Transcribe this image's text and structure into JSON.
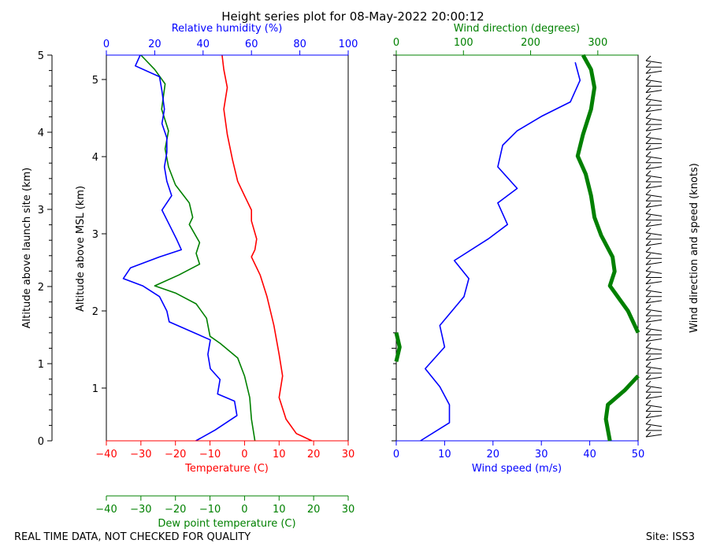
{
  "chart_data": {
    "type": "line",
    "title": "Height series plot for 08-May-2022 20:00:12",
    "footer_left": "REAL TIME DATA, NOT CHECKED FOR QUALITY",
    "footer_right": "Site: ISS3",
    "left_panel": {
      "outer_ylabel": "Altitude above launch site (km)",
      "outer_yticks": [
        "0",
        "1",
        "2",
        "3",
        "4",
        "5"
      ],
      "inner_ylabel": "Altitude above MSL (km)",
      "inner_yticks": [
        "1",
        "2",
        "3",
        "4",
        "5"
      ],
      "temp_axis": {
        "label": "Temperature (C)",
        "range": [
          -40,
          30
        ],
        "ticks": [
          "−40",
          "−30",
          "−20",
          "−10",
          "0",
          "10",
          "20",
          "30"
        ]
      },
      "rh_axis": {
        "label": "Relative humidity (%)",
        "range": [
          0,
          100
        ],
        "ticks": [
          "0",
          "20",
          "40",
          "60",
          "80",
          "100"
        ]
      },
      "dew_axis": {
        "label": "Dew point temperature (C)",
        "range": [
          -40,
          30
        ],
        "ticks": [
          "−40",
          "−30",
          "−20",
          "−10",
          "0",
          "10",
          "20",
          "30"
        ]
      },
      "altitude_range_km": [
        0,
        5.35
      ],
      "series": [
        {
          "name": "Temperature",
          "color": "#ff0000",
          "axis": "temp",
          "points": [
            [
              19.5,
              0
            ],
            [
              15,
              0.1
            ],
            [
              12,
              0.3
            ],
            [
              10,
              0.6
            ],
            [
              11,
              0.9
            ],
            [
              10,
              1.2
            ],
            [
              8.5,
              1.6
            ],
            [
              6.5,
              2.0
            ],
            [
              4.5,
              2.3
            ],
            [
              2,
              2.55
            ],
            [
              3,
              2.65
            ],
            [
              3.5,
              2.8
            ],
            [
              2,
              3.05
            ],
            [
              2,
              3.2
            ],
            [
              0,
              3.4
            ],
            [
              -2,
              3.6
            ],
            [
              -3.5,
              3.9
            ],
            [
              -5,
              4.25
            ],
            [
              -6,
              4.6
            ],
            [
              -5,
              4.9
            ],
            [
              -6,
              5.15
            ],
            [
              -6.5,
              5.35
            ]
          ]
        },
        {
          "name": "Dew point",
          "color": "#008000",
          "axis": "dew",
          "points": [
            [
              3,
              0
            ],
            [
              2,
              0.3
            ],
            [
              1.5,
              0.6
            ],
            [
              0,
              0.9
            ],
            [
              -2,
              1.15
            ],
            [
              -7,
              1.35
            ],
            [
              -10,
              1.45
            ],
            [
              -11,
              1.7
            ],
            [
              -14,
              1.9
            ],
            [
              -20,
              2.05
            ],
            [
              -26,
              2.15
            ],
            [
              -19,
              2.3
            ],
            [
              -13,
              2.45
            ],
            [
              -14,
              2.6
            ],
            [
              -13,
              2.75
            ],
            [
              -16,
              3.0
            ],
            [
              -15,
              3.1
            ],
            [
              -16,
              3.3
            ],
            [
              -20,
              3.55
            ],
            [
              -22,
              3.8
            ],
            [
              -23,
              4.05
            ],
            [
              -22,
              4.3
            ],
            [
              -24,
              4.6
            ],
            [
              -23,
              4.95
            ],
            [
              -26,
              5.15
            ],
            [
              -30,
              5.35
            ]
          ]
        },
        {
          "name": "Relative humidity",
          "color": "#0000ff",
          "axis": "rh",
          "points": [
            [
              37,
              0
            ],
            [
              45,
              0.15
            ],
            [
              54,
              0.35
            ],
            [
              53,
              0.55
            ],
            [
              46,
              0.65
            ],
            [
              47,
              0.85
            ],
            [
              43,
              1.0
            ],
            [
              42,
              1.2
            ],
            [
              43,
              1.4
            ],
            [
              26,
              1.65
            ],
            [
              25,
              1.8
            ],
            [
              22,
              2.0
            ],
            [
              15,
              2.15
            ],
            [
              7,
              2.25
            ],
            [
              10,
              2.4
            ],
            [
              22,
              2.55
            ],
            [
              31,
              2.65
            ],
            [
              29,
              2.8
            ],
            [
              26,
              3.0
            ],
            [
              23,
              3.2
            ],
            [
              27,
              3.4
            ],
            [
              25,
              3.6
            ],
            [
              24,
              3.8
            ],
            [
              25,
              4.0
            ],
            [
              25,
              4.2
            ],
            [
              23,
              4.4
            ],
            [
              24,
              4.6
            ],
            [
              23,
              4.85
            ],
            [
              22,
              5.05
            ],
            [
              12,
              5.2
            ],
            [
              14,
              5.35
            ]
          ]
        }
      ]
    },
    "right_panel": {
      "xlabel": "Wind speed (m/s)",
      "x_range": [
        0,
        50
      ],
      "xticks": [
        "0",
        "10",
        "20",
        "30",
        "40",
        "50"
      ],
      "top_label": "Wind direction (degrees)",
      "top_range": [
        0,
        360
      ],
      "top_ticks": [
        "0",
        "100",
        "200",
        "300"
      ],
      "barb_label": "Wind direction and speed (knots)",
      "series": [
        {
          "name": "Wind speed",
          "color": "#0000ff",
          "points": [
            [
              5,
              0
            ],
            [
              11,
              0.25
            ],
            [
              11,
              0.5
            ],
            [
              9,
              0.75
            ],
            [
              6,
              1.0
            ],
            [
              10,
              1.3
            ],
            [
              9,
              1.6
            ],
            [
              14,
              2.0
            ],
            [
              15,
              2.25
            ],
            [
              12,
              2.5
            ],
            [
              19,
              2.8
            ],
            [
              23,
              3.0
            ],
            [
              21,
              3.3
            ],
            [
              25,
              3.5
            ],
            [
              21,
              3.8
            ],
            [
              22,
              4.1
            ],
            [
              25,
              4.3
            ],
            [
              30,
              4.5
            ],
            [
              36,
              4.7
            ],
            [
              38,
              5.0
            ],
            [
              37,
              5.25
            ]
          ]
        },
        {
          "name": "Wind direction",
          "color": "#008000",
          "points": [
            [
              318,
              0
            ],
            [
              312,
              0.3
            ],
            [
              315,
              0.5
            ],
            [
              340,
              0.7
            ],
            [
              360,
              0.9
            ],
            [
              null,
              0.95
            ],
            [
              0,
              1.1
            ],
            [
              5,
              1.3
            ],
            [
              0,
              1.5
            ],
            [
              null,
              1.55
            ],
            [
              360,
              1.5
            ],
            [
              345,
              1.8
            ],
            [
              318,
              2.15
            ],
            [
              325,
              2.35
            ],
            [
              322,
              2.55
            ],
            [
              305,
              2.85
            ],
            [
              295,
              3.1
            ],
            [
              290,
              3.4
            ],
            [
              282,
              3.7
            ],
            [
              270,
              3.95
            ],
            [
              278,
              4.25
            ],
            [
              290,
              4.6
            ],
            [
              295,
              4.9
            ],
            [
              290,
              5.15
            ],
            [
              278,
              5.35
            ]
          ]
        }
      ]
    }
  }
}
